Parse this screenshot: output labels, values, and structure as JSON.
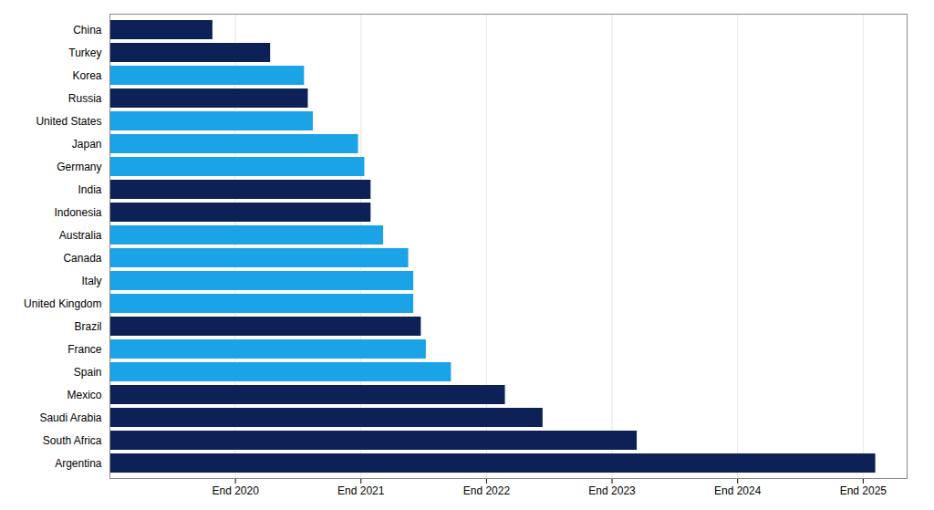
{
  "chart_data": {
    "type": "bar",
    "orientation": "horizontal",
    "categories": [
      "Argentina",
      "South Africa",
      "Saudi Arabia",
      "Mexico",
      "Spain",
      "France",
      "Brazil",
      "United Kingdom",
      "Italy",
      "Canada",
      "Australia",
      "Indonesia",
      "India",
      "Germany",
      "Japan",
      "United States",
      "Russia",
      "Korea",
      "Turkey",
      "China"
    ],
    "values": [
      6.1,
      4.2,
      3.45,
      3.15,
      2.72,
      2.52,
      2.48,
      2.42,
      2.42,
      2.38,
      2.18,
      2.08,
      2.08,
      2.03,
      1.98,
      1.62,
      1.58,
      1.55,
      1.28,
      0.82
    ],
    "colors": [
      "#0d2157",
      "#0d2157",
      "#0d2157",
      "#0d2157",
      "#1ba3e8",
      "#1ba3e8",
      "#0d2157",
      "#1ba3e8",
      "#1ba3e8",
      "#1ba3e8",
      "#1ba3e8",
      "#0d2157",
      "#0d2157",
      "#1ba3e8",
      "#1ba3e8",
      "#1ba3e8",
      "#0d2157",
      "#1ba3e8",
      "#0d2157",
      "#0d2157"
    ],
    "xlim": [
      0,
      6.35
    ],
    "xticks": [
      {
        "value": 1.0,
        "label": "End 2020"
      },
      {
        "value": 2.0,
        "label": "End 2021"
      },
      {
        "value": 3.0,
        "label": "End 2022"
      },
      {
        "value": 4.0,
        "label": "End 2023"
      },
      {
        "value": 5.0,
        "label": "End 2024"
      },
      {
        "value": 6.0,
        "label": "End 2025"
      }
    ],
    "grid": true
  }
}
